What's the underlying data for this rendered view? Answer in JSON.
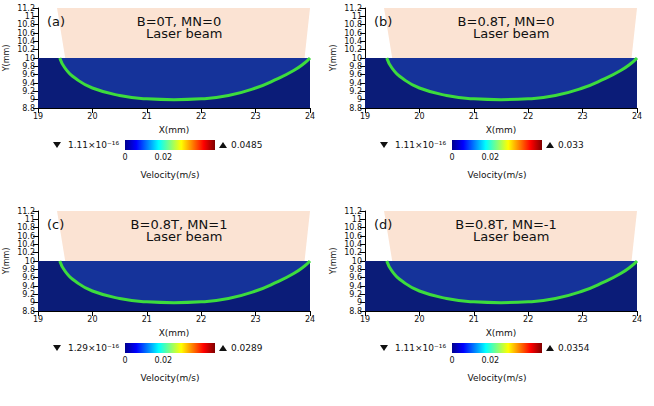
{
  "chart_data": [
    {
      "type": "contour",
      "label": "(a)",
      "title": "B=0T, MN=0",
      "annotation": "Laser beam",
      "xlabel": "X(mm)",
      "ylabel": "Y(mm)",
      "xlim": [
        19,
        24
      ],
      "xticks": [
        19,
        20,
        21,
        22,
        23,
        24
      ],
      "ylim": [
        8.8,
        11.2
      ],
      "yticks": [
        8.8,
        9,
        9.2,
        9.4,
        9.6,
        9.8,
        10,
        10.2,
        10.4,
        10.6,
        10.8,
        11,
        11.2
      ],
      "surface_y": 10,
      "laser_beam": {
        "x": [
          19.5,
          19.35,
          24,
          23.9
        ],
        "y": [
          10,
          11.2,
          11.2,
          10
        ]
      },
      "melt_pool_boundary": {
        "x": [
          19.4,
          19.5,
          19.7,
          20,
          20.5,
          21,
          21.5,
          22,
          22.5,
          23,
          23.4,
          23.7,
          23.9,
          24
        ],
        "y": [
          10,
          9.75,
          9.5,
          9.28,
          9.1,
          9.02,
          9,
          9.02,
          9.1,
          9.28,
          9.5,
          9.7,
          9.88,
          10
        ]
      },
      "colorbar": {
        "label": "Velocity(m/s)",
        "range": [
          0,
          0.047
        ],
        "ticks": [
          0,
          0.02
        ],
        "min": {
          "value": 1.11e-16,
          "label": "1.11×10⁻¹⁶"
        },
        "max": 0.0485
      },
      "grid": false
    },
    {
      "type": "contour",
      "label": "(b)",
      "title": "B=0.8T, MN=0",
      "annotation": "Laser beam",
      "xlabel": "X(mm)",
      "ylabel": "Y(mm)",
      "xlim": [
        19,
        24
      ],
      "xticks": [
        19,
        20,
        21,
        22,
        23,
        24
      ],
      "ylim": [
        8.8,
        11.2
      ],
      "yticks": [
        8.8,
        9,
        9.2,
        9.4,
        9.6,
        9.8,
        10,
        10.2,
        10.4,
        10.6,
        10.8,
        11,
        11.2
      ],
      "surface_y": 10,
      "laser_beam": {
        "x": [
          19.5,
          19.35,
          24,
          23.9
        ],
        "y": [
          10,
          11.2,
          11.2,
          10
        ]
      },
      "melt_pool_boundary": {
        "x": [
          19.4,
          19.5,
          19.7,
          20,
          20.5,
          21,
          21.5,
          22,
          22.5,
          23,
          23.4,
          23.7,
          23.9,
          24
        ],
        "y": [
          10,
          9.75,
          9.5,
          9.28,
          9.1,
          9.02,
          9,
          9.02,
          9.1,
          9.28,
          9.5,
          9.7,
          9.88,
          10
        ]
      },
      "colorbar": {
        "label": "Velocity(m/s)",
        "range": [
          0,
          0.047
        ],
        "ticks": [
          0,
          0.02
        ],
        "min": {
          "value": 1.11e-16,
          "label": "1.11×10⁻¹⁶"
        },
        "max": 0.033
      },
      "grid": false
    },
    {
      "type": "contour",
      "label": "(c)",
      "title": "B=0.8T, MN=1",
      "annotation": "Laser beam",
      "xlabel": "X(mm)",
      "ylabel": "Y(mm)",
      "xlim": [
        19,
        24
      ],
      "xticks": [
        19,
        20,
        21,
        22,
        23,
        24
      ],
      "ylim": [
        8.8,
        11.2
      ],
      "yticks": [
        8.8,
        9,
        9.2,
        9.4,
        9.6,
        9.8,
        10,
        10.2,
        10.4,
        10.6,
        10.8,
        11,
        11.2
      ],
      "surface_y": 10,
      "laser_beam": {
        "x": [
          19.5,
          19.35,
          24,
          23.9
        ],
        "y": [
          10,
          11.2,
          11.2,
          10
        ]
      },
      "melt_pool_boundary": {
        "x": [
          19.4,
          19.5,
          19.7,
          20,
          20.5,
          21,
          21.5,
          22,
          22.5,
          23,
          23.4,
          23.7,
          23.9,
          24
        ],
        "y": [
          10,
          9.75,
          9.5,
          9.28,
          9.1,
          9.02,
          9,
          9.02,
          9.1,
          9.28,
          9.5,
          9.7,
          9.88,
          10
        ]
      },
      "colorbar": {
        "label": "Velocity(m/s)",
        "range": [
          0,
          0.047
        ],
        "ticks": [
          0,
          0.02
        ],
        "min": {
          "value": 1.29e-16,
          "label": "1.29×10⁻¹⁶"
        },
        "max": 0.0289
      },
      "grid": false
    },
    {
      "type": "contour",
      "label": "(d)",
      "title": "B=0.8T, MN=-1",
      "annotation": "Laser beam",
      "xlabel": "X(mm)",
      "ylabel": "Y(mm)",
      "xlim": [
        19,
        24
      ],
      "xticks": [
        19,
        20,
        21,
        22,
        23,
        24
      ],
      "ylim": [
        8.8,
        11.2
      ],
      "yticks": [
        8.8,
        9,
        9.2,
        9.4,
        9.6,
        9.8,
        10,
        10.2,
        10.4,
        10.6,
        10.8,
        11,
        11.2
      ],
      "surface_y": 10,
      "laser_beam": {
        "x": [
          19.5,
          19.35,
          24,
          23.9
        ],
        "y": [
          10,
          11.2,
          11.2,
          10
        ]
      },
      "melt_pool_boundary": {
        "x": [
          19.4,
          19.5,
          19.7,
          20,
          20.5,
          21,
          21.5,
          22,
          22.5,
          23,
          23.4,
          23.7,
          23.9,
          24
        ],
        "y": [
          10,
          9.75,
          9.5,
          9.28,
          9.1,
          9.02,
          9,
          9.02,
          9.1,
          9.28,
          9.5,
          9.7,
          9.88,
          10
        ]
      },
      "colorbar": {
        "label": "Velocity(m/s)",
        "range": [
          0,
          0.047
        ],
        "ticks": [
          0,
          0.02
        ],
        "min": {
          "value": 1.11e-16,
          "label": "1.11×10⁻¹⁶"
        },
        "max": 0.0354
      },
      "grid": false
    }
  ]
}
